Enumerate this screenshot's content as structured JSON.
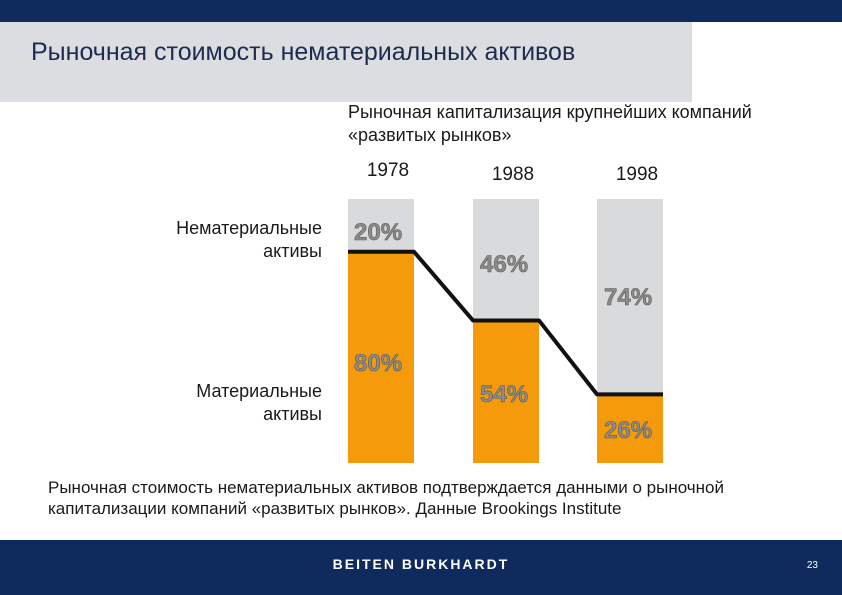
{
  "slide": {
    "title": "Рыночная стоимость нематериальных активов",
    "caption": "Рыночная стоимость нематериальных активов подтверждается данными о рыночной капитализации компаний «развитых рынков». Данные Brookings Institute",
    "brand": "BEITEN BURKHARDT",
    "page_number": "23"
  },
  "chart_data": {
    "type": "bar",
    "stacked": true,
    "title": "Рыночная капитализация крупнейших компаний «развитых рынков»",
    "categories": [
      "1978",
      "1988",
      "1998"
    ],
    "series": [
      {
        "name": "Нематериальные активы",
        "values": [
          20,
          46,
          74
        ],
        "labels": [
          "20%",
          "46%",
          "74%"
        ],
        "color": "#d9dadc"
      },
      {
        "name": "Материальные активы",
        "values": [
          80,
          54,
          26
        ],
        "labels": [
          "80%",
          "54%",
          "26%"
        ],
        "color": "#f59a0a"
      }
    ],
    "ylim": [
      0,
      100
    ],
    "connector_color": "#111111",
    "label_color": "#8c8c8c"
  }
}
